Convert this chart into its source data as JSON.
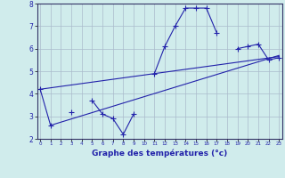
{
  "bg_color": "#d0ecec",
  "line_color": "#2222aa",
  "grid_color": "#aabbcc",
  "xlabel": "Graphe des températures (°c)",
  "hours": [
    0,
    1,
    2,
    3,
    4,
    5,
    6,
    7,
    8,
    9,
    10,
    11,
    12,
    13,
    14,
    15,
    16,
    17,
    18,
    19,
    20,
    21,
    22,
    23
  ],
  "temp_main": [
    4.2,
    2.6,
    null,
    3.2,
    null,
    3.7,
    3.1,
    2.9,
    2.2,
    3.1,
    null,
    4.9,
    6.1,
    7.0,
    7.8,
    7.8,
    7.8,
    6.7,
    null,
    6.0,
    6.1,
    6.2,
    5.5,
    5.6
  ],
  "trend1_x": [
    1,
    23
  ],
  "trend1_y": [
    2.6,
    5.7
  ],
  "trend2_x": [
    0,
    23
  ],
  "trend2_y": [
    4.2,
    5.65
  ],
  "ylim": [
    2.0,
    8.0
  ],
  "yticks": [
    2,
    3,
    4,
    5,
    6,
    7,
    8
  ],
  "xlim": [
    -0.3,
    23.3
  ]
}
